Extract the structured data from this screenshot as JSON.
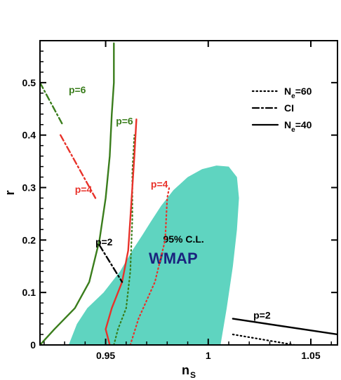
{
  "chart_data": {
    "type": "line",
    "xlabel": "n",
    "xlabel_sub": "S",
    "ylabel": "r",
    "xlim": [
      0.918,
      1.063
    ],
    "ylim": [
      0,
      0.58
    ],
    "xticks": [
      0.95,
      1,
      1.05
    ],
    "xtick_labels": [
      "0.95",
      "1",
      "1.05"
    ],
    "yticks": [
      0,
      0.1,
      0.2,
      0.3,
      0.4,
      0.5
    ],
    "ytick_labels": [
      "0",
      "0.1",
      "0.2",
      "0.3",
      "0.4",
      "0.5"
    ],
    "grid": false,
    "legend_position": "top-right",
    "colors": {
      "green": "#3a7d1c",
      "red": "#e8322a",
      "black": "#000000",
      "region": "#5fd4c0",
      "wmap_text": "#1a237e"
    },
    "legend": [
      {
        "label_main": "N",
        "label_sub": "e",
        "label_tail": "=60",
        "style": "dotted"
      },
      {
        "label_main": "CI",
        "label_sub": "",
        "label_tail": "",
        "style": "dashdot"
      },
      {
        "label_main": "N",
        "label_sub": "e",
        "label_tail": "=40",
        "style": "solid"
      }
    ],
    "region": {
      "name": "95% C.L.",
      "label": "WMAP",
      "boundary": [
        [
          0.932,
          0.0
        ],
        [
          0.936,
          0.04
        ],
        [
          0.941,
          0.07
        ],
        [
          0.949,
          0.1
        ],
        [
          0.957,
          0.14
        ],
        [
          0.963,
          0.18
        ],
        [
          0.968,
          0.21
        ],
        [
          0.972,
          0.235
        ],
        [
          0.977,
          0.265
        ],
        [
          0.983,
          0.295
        ],
        [
          0.99,
          0.32
        ],
        [
          0.997,
          0.335
        ],
        [
          1.004,
          0.342
        ],
        [
          1.01,
          0.34
        ],
        [
          1.014,
          0.32
        ],
        [
          1.015,
          0.28
        ],
        [
          1.014,
          0.22
        ],
        [
          1.012,
          0.15
        ],
        [
          1.009,
          0.07
        ],
        [
          1.006,
          0.0
        ]
      ]
    },
    "series": [
      {
        "label": "p=6",
        "color": "green",
        "style": "solid",
        "points": [
          [
            0.918,
            0.0
          ],
          [
            0.925,
            0.03
          ],
          [
            0.935,
            0.07
          ],
          [
            0.942,
            0.12
          ],
          [
            0.947,
            0.2
          ],
          [
            0.95,
            0.28
          ],
          [
            0.952,
            0.36
          ],
          [
            0.953,
            0.44
          ],
          [
            0.954,
            0.5
          ],
          [
            0.954,
            0.575
          ]
        ]
      },
      {
        "label": "p=6",
        "color": "green",
        "style": "dotted",
        "points": [
          [
            0.954,
            0.0
          ],
          [
            0.956,
            0.03
          ],
          [
            0.96,
            0.07
          ],
          [
            0.962,
            0.14
          ],
          [
            0.963,
            0.24
          ],
          [
            0.963,
            0.33
          ],
          [
            0.964,
            0.4
          ]
        ]
      },
      {
        "label": "p=6",
        "color": "green",
        "style": "dashdot",
        "points": [
          [
            0.918,
            0.5
          ],
          [
            0.929,
            0.42
          ]
        ]
      },
      {
        "label": "p=4",
        "color": "red",
        "style": "solid",
        "points": [
          [
            0.952,
            0.0
          ],
          [
            0.95,
            0.03
          ],
          [
            0.953,
            0.07
          ],
          [
            0.958,
            0.12
          ],
          [
            0.961,
            0.18
          ],
          [
            0.962,
            0.24
          ],
          [
            0.963,
            0.3
          ],
          [
            0.964,
            0.36
          ],
          [
            0.965,
            0.43
          ]
        ]
      },
      {
        "label": "p=4",
        "color": "red",
        "style": "dotted",
        "points": [
          [
            0.962,
            0.0
          ],
          [
            0.966,
            0.05
          ],
          [
            0.974,
            0.12
          ],
          [
            0.979,
            0.2
          ],
          [
            0.98,
            0.28
          ],
          [
            0.981,
            0.3
          ]
        ]
      },
      {
        "label": "p=4",
        "color": "red",
        "style": "dashdot",
        "points": [
          [
            0.928,
            0.4
          ],
          [
            0.945,
            0.28
          ]
        ]
      },
      {
        "label": "p=2",
        "color": "black",
        "style": "dashdot",
        "points": [
          [
            0.947,
            0.19
          ],
          [
            0.958,
            0.12
          ]
        ]
      },
      {
        "label": "p=2",
        "color": "black",
        "style": "dotted",
        "points": [
          [
            1.012,
            0.02
          ],
          [
            1.042,
            0.0
          ]
        ]
      },
      {
        "label": "p=2",
        "color": "black",
        "style": "solid",
        "points": [
          [
            1.012,
            0.05
          ],
          [
            1.063,
            0.02
          ]
        ]
      }
    ],
    "annotations": [
      {
        "text": "p=6",
        "color": "green",
        "at": [
          0.932,
          0.48
        ]
      },
      {
        "text": "p=6",
        "color": "green",
        "at": [
          0.955,
          0.42
        ]
      },
      {
        "text": "p=4",
        "color": "red",
        "at": [
          0.935,
          0.29
        ]
      },
      {
        "text": "p=4",
        "color": "red",
        "at": [
          0.972,
          0.3
        ]
      },
      {
        "text": "p=2",
        "color": "black",
        "at": [
          0.945,
          0.19
        ]
      },
      {
        "text": "p=2",
        "color": "black",
        "at": [
          1.022,
          0.05
        ]
      }
    ]
  }
}
